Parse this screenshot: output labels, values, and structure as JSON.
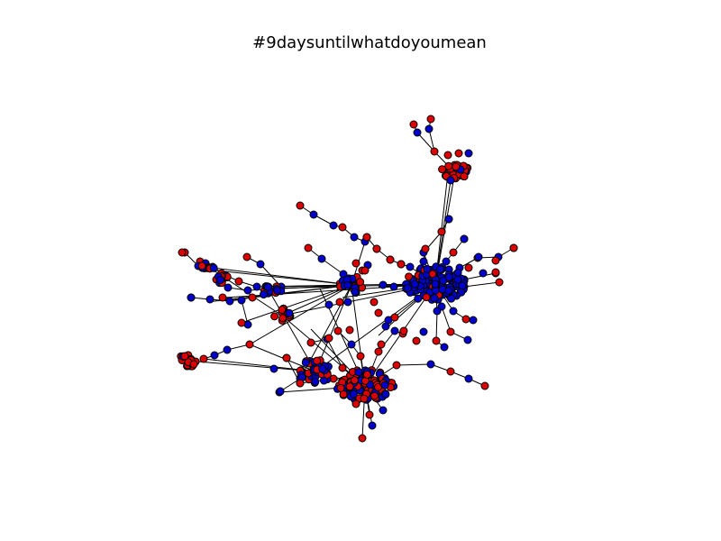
{
  "figure": {
    "title": "#9daysuntilwhatdoyoumean",
    "background_color": "#ffffff"
  },
  "colors": {
    "blue_node": "#0000cc",
    "red_node": "#dd0000",
    "edge": "#000000",
    "node_outline": "#000000"
  },
  "legend": "none",
  "axes_visible": false
}
